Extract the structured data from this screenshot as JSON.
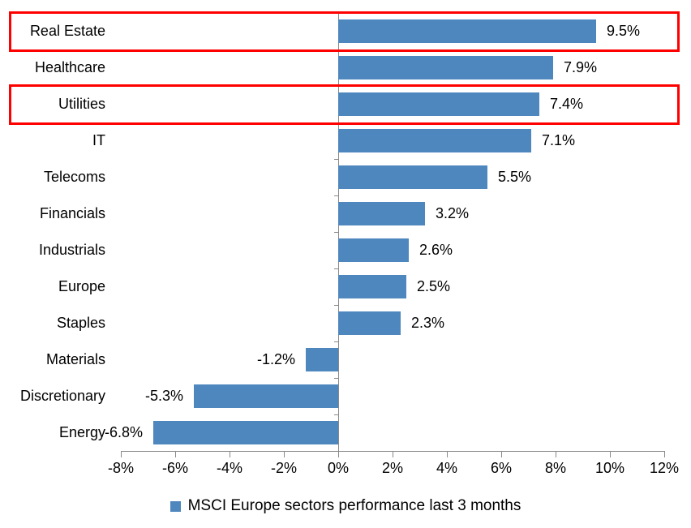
{
  "chart_data": {
    "type": "bar",
    "orientation": "horizontal",
    "title": "",
    "categories": [
      "Real Estate",
      "Healthcare",
      "Utilities",
      "IT",
      "Telecoms",
      "Financials",
      "Industrials",
      "Europe",
      "Staples",
      "Materials",
      "Discretionary",
      "Energy"
    ],
    "values": [
      9.5,
      7.9,
      7.4,
      7.1,
      5.5,
      3.2,
      2.6,
      2.5,
      2.3,
      -1.2,
      -5.3,
      -6.8
    ],
    "value_labels": [
      "9.5%",
      "7.9%",
      "7.4%",
      "7.1%",
      "5.5%",
      "3.2%",
      "2.6%",
      "2.5%",
      "2.3%",
      "-1.2%",
      "-5.3%",
      "-6.8%"
    ],
    "x_axis": {
      "min": -8,
      "max": 12,
      "tick_step": 2,
      "tick_values": [
        -8,
        -6,
        -4,
        -2,
        0,
        2,
        4,
        6,
        8,
        10,
        12
      ],
      "tick_labels": [
        "-8%",
        "-6%",
        "-4%",
        "-2%",
        "0%",
        "2%",
        "4%",
        "6%",
        "8%",
        "10%",
        "12%"
      ]
    },
    "grid": false,
    "legend_position": "bottom",
    "legend": "MSCI Europe sectors performance last 3 months",
    "bar_color": "#4E86BE",
    "axis_color": "#898989",
    "text_color": "#000000",
    "highlight_color": "#FF0000",
    "highlighted_categories": [
      "Real Estate",
      "Utilities"
    ]
  }
}
